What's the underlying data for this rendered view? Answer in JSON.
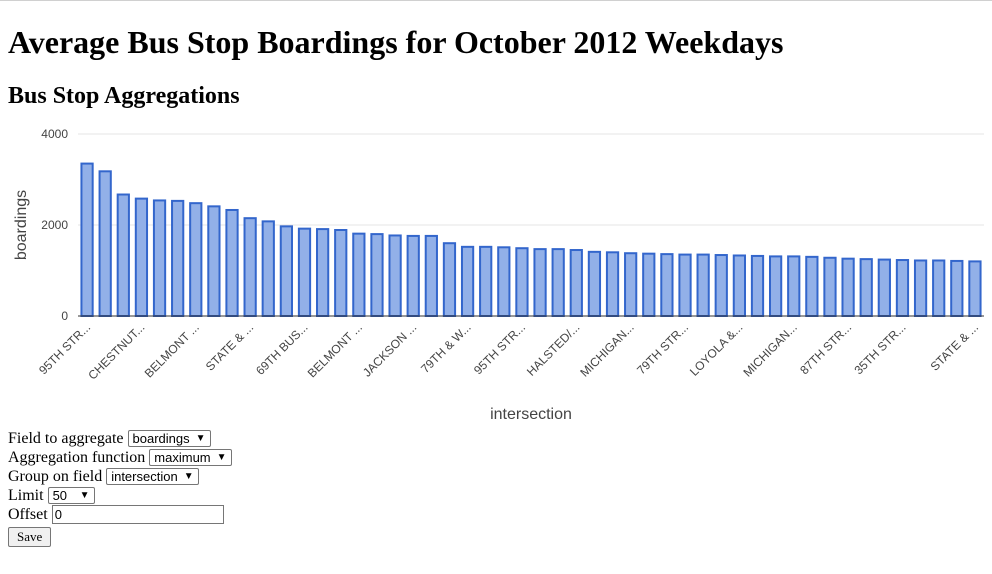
{
  "page": {
    "title": "Average Bus Stop Boardings for October 2012 Weekdays",
    "subtitle": "Bus Stop Aggregations"
  },
  "form": {
    "field_label": "Field to aggregate",
    "field_value": "boardings",
    "function_label": "Aggregation function",
    "function_value": "maximum",
    "group_label": "Group on field",
    "group_value": "intersection",
    "limit_label": "Limit",
    "limit_value": "50",
    "offset_label": "Offset",
    "offset_value": "0",
    "save_label": "Save"
  },
  "chart_data": {
    "type": "bar",
    "xlabel": "intersection",
    "ylabel": "boardings",
    "ylim": [
      0,
      4000
    ],
    "yticks": [
      0,
      2000,
      4000
    ],
    "grid": true,
    "colors": {
      "fill": "#92b0e8",
      "stroke": "#3366cc",
      "grid": "#e6e6e6",
      "axis": "#333333",
      "text": "#444444"
    },
    "tick_labels": [
      {
        "index": 0,
        "label": "95TH STR..."
      },
      {
        "index": 3,
        "label": "CHESTNUT..."
      },
      {
        "index": 6,
        "label": "BELMONT ..."
      },
      {
        "index": 9,
        "label": "STATE & ..."
      },
      {
        "index": 12,
        "label": "69TH BUS..."
      },
      {
        "index": 15,
        "label": "BELMONT ..."
      },
      {
        "index": 18,
        "label": "JACKSON ..."
      },
      {
        "index": 21,
        "label": "79TH & W..."
      },
      {
        "index": 24,
        "label": "95TH STR..."
      },
      {
        "index": 27,
        "label": "HALSTED/..."
      },
      {
        "index": 30,
        "label": "MICHIGAN..."
      },
      {
        "index": 33,
        "label": "79TH STR..."
      },
      {
        "index": 36,
        "label": "LOYOLA &..."
      },
      {
        "index": 39,
        "label": "MICHIGAN..."
      },
      {
        "index": 42,
        "label": "87TH STR..."
      },
      {
        "index": 45,
        "label": "35TH STR..."
      },
      {
        "index": 49,
        "label": "STATE & ..."
      }
    ],
    "values": [
      3350,
      3180,
      2670,
      2580,
      2540,
      2530,
      2480,
      2410,
      2330,
      2150,
      2080,
      1970,
      1920,
      1910,
      1890,
      1810,
      1800,
      1770,
      1760,
      1760,
      1600,
      1520,
      1520,
      1510,
      1490,
      1470,
      1470,
      1450,
      1410,
      1400,
      1380,
      1370,
      1360,
      1350,
      1350,
      1340,
      1330,
      1320,
      1310,
      1310,
      1300,
      1280,
      1260,
      1250,
      1240,
      1230,
      1220,
      1220,
      1210,
      1200
    ]
  }
}
